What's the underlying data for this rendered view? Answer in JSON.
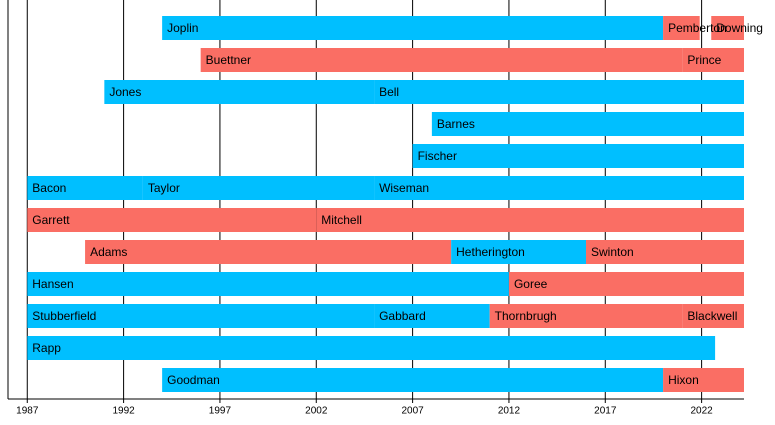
{
  "chart_data": {
    "type": "timeline",
    "xlim": [
      1986,
      2024.2
    ],
    "xticks": [
      1987,
      1992,
      1997,
      2002,
      2007,
      2012,
      2017,
      2022
    ],
    "grid": true,
    "rows": [
      {
        "segments": [
          {
            "name": "Joplin",
            "start": 1994,
            "end": 2020,
            "color": "#00bfff"
          },
          {
            "name": "Pemberton",
            "start": 2020,
            "end": 2021.9,
            "color": "#fa6e64"
          },
          {
            "name": "Downing",
            "start": 2022.5,
            "end": 2024.2,
            "color": "#fa6e64"
          }
        ]
      },
      {
        "segments": [
          {
            "name": "Buettner",
            "start": 1996,
            "end": 2021,
            "color": "#fa6e64"
          },
          {
            "name": "Prince",
            "start": 2021,
            "end": 2024.2,
            "color": "#fa6e64"
          }
        ]
      },
      {
        "segments": [
          {
            "name": "Jones",
            "start": 1991,
            "end": 2005,
            "color": "#00bfff"
          },
          {
            "name": "Bell",
            "start": 2005,
            "end": 2024.2,
            "color": "#00bfff"
          }
        ]
      },
      {
        "segments": [
          {
            "name": "Barnes",
            "start": 2008,
            "end": 2024.2,
            "color": "#00bfff"
          }
        ]
      },
      {
        "segments": [
          {
            "name": "Fischer",
            "start": 2007,
            "end": 2024.2,
            "color": "#00bfff"
          }
        ]
      },
      {
        "segments": [
          {
            "name": "Bacon",
            "start": 1987,
            "end": 1993,
            "color": "#00bfff"
          },
          {
            "name": "Taylor",
            "start": 1993,
            "end": 2005,
            "color": "#00bfff"
          },
          {
            "name": "Wiseman",
            "start": 2005,
            "end": 2024.2,
            "color": "#00bfff"
          }
        ]
      },
      {
        "segments": [
          {
            "name": "Garrett",
            "start": 1987,
            "end": 2002,
            "color": "#fa6e64"
          },
          {
            "name": "Mitchell",
            "start": 2002,
            "end": 2024.2,
            "color": "#fa6e64"
          }
        ]
      },
      {
        "segments": [
          {
            "name": "Adams",
            "start": 1990,
            "end": 2009,
            "color": "#fa6e64"
          },
          {
            "name": "Hetherington",
            "start": 2009,
            "end": 2016,
            "color": "#00bfff"
          },
          {
            "name": "Swinton",
            "start": 2016,
            "end": 2024.2,
            "color": "#fa6e64"
          }
        ]
      },
      {
        "segments": [
          {
            "name": "Hansen",
            "start": 1987,
            "end": 2012,
            "color": "#00bfff"
          },
          {
            "name": "Goree",
            "start": 2012,
            "end": 2024.2,
            "color": "#fa6e64"
          }
        ]
      },
      {
        "segments": [
          {
            "name": "Stubberfield",
            "start": 1987,
            "end": 2005,
            "color": "#00bfff"
          },
          {
            "name": "Gabbard",
            "start": 2005,
            "end": 2011,
            "color": "#00bfff"
          },
          {
            "name": "Thornbrugh",
            "start": 2011,
            "end": 2021,
            "color": "#fa6e64"
          },
          {
            "name": "Blackwell",
            "start": 2021,
            "end": 2024.2,
            "color": "#fa6e64"
          }
        ]
      },
      {
        "segments": [
          {
            "name": "Rapp",
            "start": 1987,
            "end": 2022.7,
            "color": "#00bfff"
          }
        ]
      },
      {
        "segments": [
          {
            "name": "Goodman",
            "start": 1994,
            "end": 2020,
            "color": "#00bfff"
          },
          {
            "name": "Hixon",
            "start": 2020,
            "end": 2024.2,
            "color": "#fa6e64"
          }
        ]
      }
    ]
  }
}
